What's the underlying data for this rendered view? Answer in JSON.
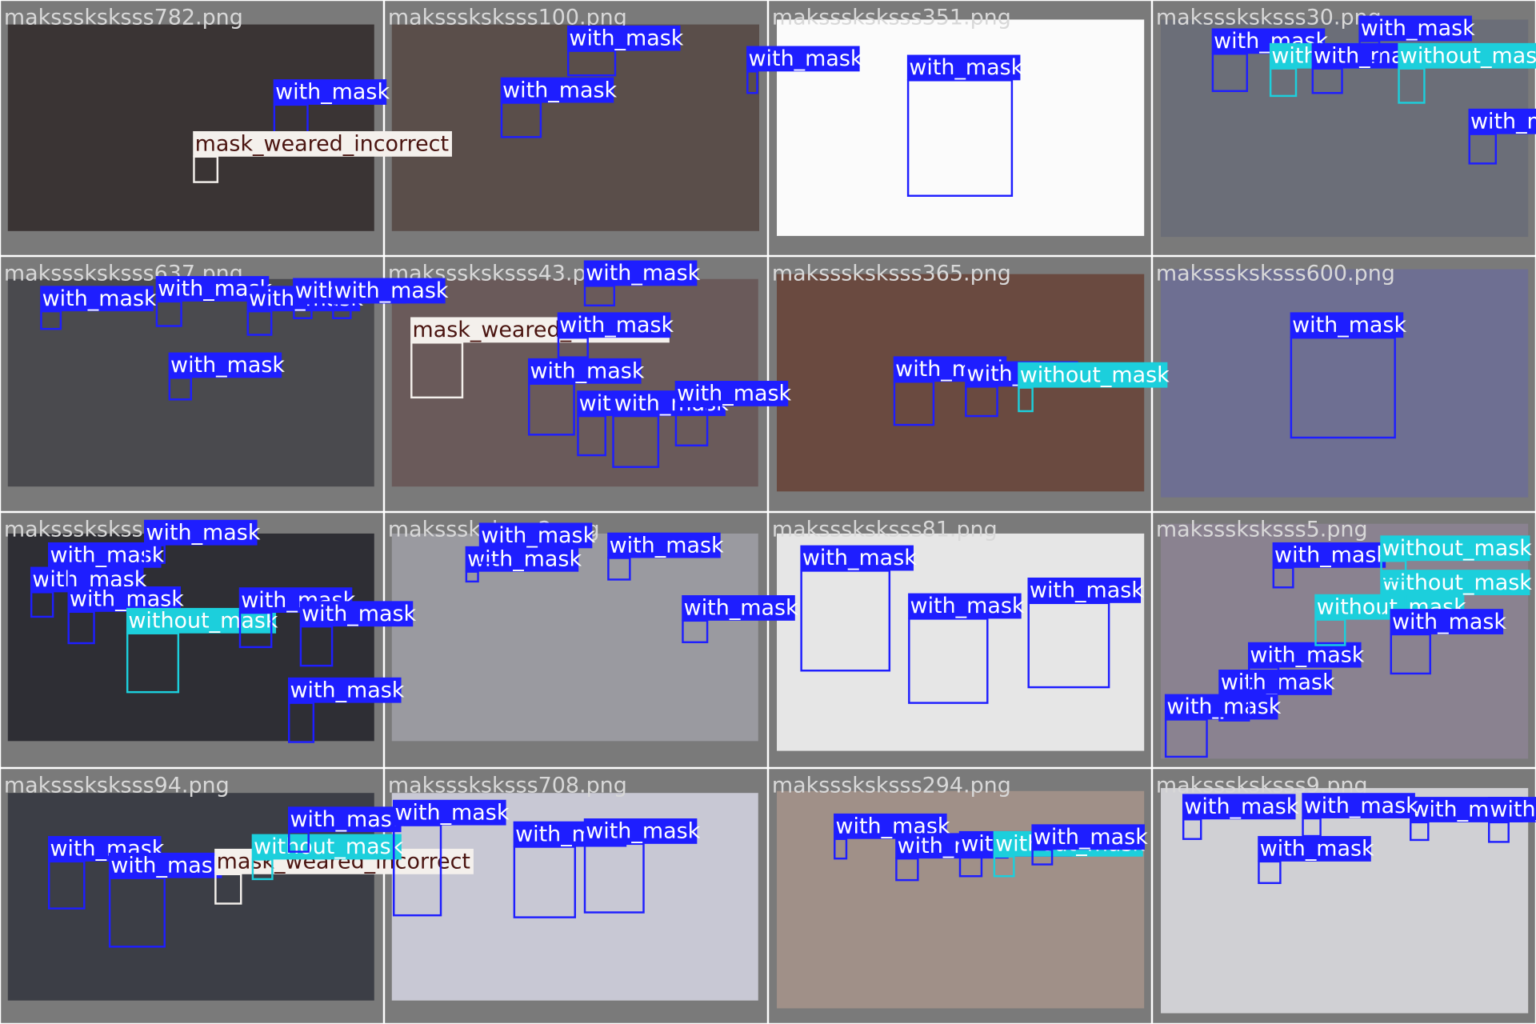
{
  "classes": [
    {
      "name": "with_mask",
      "color": "#1e1eff",
      "text_color": "#ffffff"
    },
    {
      "name": "without_mask",
      "color": "#1ccfdc",
      "text_color": "#ffffff"
    },
    {
      "name": "mask_weared_incorrect",
      "color": "#f4f0ec",
      "text_color": "#4a1410"
    }
  ],
  "tiles": [
    {
      "file": "maksssksksss782.png",
      "detections": [
        "with_mask",
        "mask_weared_incorrect"
      ]
    },
    {
      "file": "maksssksksss100.png",
      "detections": [
        "with_mask",
        "with_mask",
        "with_mask"
      ]
    },
    {
      "file": "maksssksksss351.png",
      "detections": [
        "with_mask"
      ]
    },
    {
      "file": "maksssksksss30.png",
      "detections": [
        "with_mask",
        "without_mask",
        "with_mask",
        "without_mask",
        "with_mask",
        "with_mask"
      ]
    },
    {
      "file": "maksssksksss637.png",
      "detections": [
        "with_mask",
        "with_mask",
        "with_mask",
        "with_mask",
        "with_mask",
        "with_mask"
      ]
    },
    {
      "file": "maksssksksss43.png",
      "detections": [
        "mask_weared_incorrect",
        "with_mask",
        "with_mask",
        "with_mask",
        "with_mask",
        "with_mask",
        "with_mask"
      ]
    },
    {
      "file": "maksssksksss365.png",
      "detections": [
        "with_mask",
        "with_mask",
        "without_mask"
      ]
    },
    {
      "file": "maksssksksss600.png",
      "detections": [
        "with_mask"
      ]
    },
    {
      "file": "maksssksksss0.png",
      "detections": [
        "with_mask",
        "with_mask",
        "without_mask",
        "with_mask",
        "with_mask",
        "with_mask",
        "with_mask",
        "with_mask"
      ]
    },
    {
      "file": "maksssksksss2.png",
      "detections": [
        "with_mask",
        "with_mask",
        "with_mask",
        "with_mask"
      ]
    },
    {
      "file": "maksssksksss81.png",
      "detections": [
        "with_mask",
        "with_mask",
        "with_mask"
      ]
    },
    {
      "file": "maksssksksss5.png",
      "detections": [
        "with_mask",
        "with_mask",
        "with_mask",
        "without_mask",
        "without_mask",
        "with_mask",
        "with_mask",
        "without_mask"
      ]
    },
    {
      "file": "maksssksksss94.png",
      "detections": [
        "with_mask",
        "with_mask",
        "mask_weared_incorrect",
        "without_mask",
        "with_mask"
      ]
    },
    {
      "file": "maksssksksss708.png",
      "detections": [
        "with_mask",
        "with_mask",
        "with_mask"
      ]
    },
    {
      "file": "maksssksksss294.png",
      "detections": [
        "with_mask",
        "with_mask",
        "with_mask",
        "without_mask",
        "with_mask"
      ]
    },
    {
      "file": "maksssksksss9.png",
      "detections": [
        "with_mask",
        "with_mask",
        "with_mask",
        "with_mask",
        "with_mask"
      ]
    }
  ]
}
